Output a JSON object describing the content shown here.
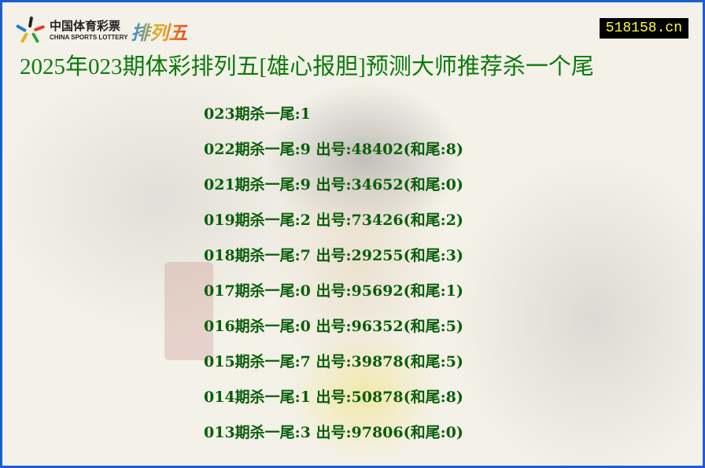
{
  "logo": {
    "cn": "中国体育彩票",
    "en": "CHINA SPORTS LOTTERY",
    "game": "排列五"
  },
  "site_badge": "518158.cn",
  "title": "2025年023期体彩排列五[雄心报胆]预测大师推荐杀一个尾",
  "rows": [
    "023期杀一尾:1",
    "022期杀一尾:9 出号:48402(和尾:8)",
    "021期杀一尾:9 出号:34652(和尾:0)",
    "019期杀一尾:2 出号:73426(和尾:2)",
    "018期杀一尾:7 出号:29255(和尾:3)",
    "017期杀一尾:0 出号:95692(和尾:1)",
    "016期杀一尾:0 出号:96352(和尾:5)",
    "015期杀一尾:7 出号:39878(和尾:5)",
    "014期杀一尾:1 出号:50878(和尾:8)",
    "013期杀一尾:3 出号:97806(和尾:0)"
  ],
  "colors": {
    "border": "#1a5fd0",
    "text": "#0a5e0a",
    "badge_bg": "#000000",
    "badge_text": "#ffff33"
  }
}
